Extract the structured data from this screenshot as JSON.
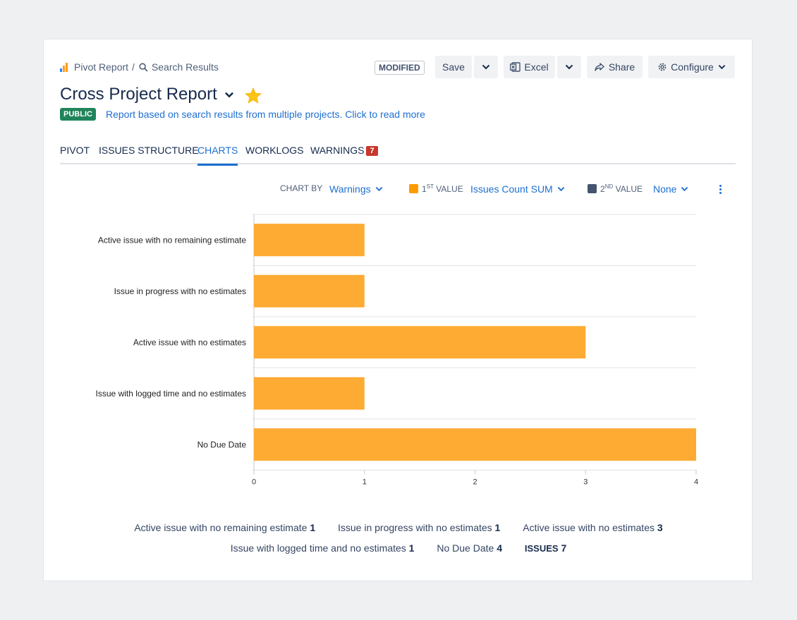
{
  "breadcrumb": {
    "parent": "Pivot Report",
    "separator": "/",
    "current": "Search Results"
  },
  "status_badge": "MODIFIED",
  "toolbar": {
    "save": "Save",
    "excel": "Excel",
    "share": "Share",
    "configure": "Configure"
  },
  "report": {
    "title": "Cross Project Report",
    "visibility": "PUBLIC",
    "description": "Report based on search results from multiple projects. Click to read more"
  },
  "tabs": [
    {
      "label": "PIVOT"
    },
    {
      "label": "ISSUES STRUCTURE"
    },
    {
      "label": "CHARTS"
    },
    {
      "label": "WORKLOGS"
    },
    {
      "label": "WARNINGS",
      "count": "7"
    }
  ],
  "chart_options": {
    "chart_by_label": "CHART BY",
    "chart_by_value": "Warnings",
    "first_value_prefix": "1",
    "first_value_sup": "ST",
    "first_value_label": "VALUE",
    "first_value_value": "Issues Count SUM",
    "second_value_prefix": "2",
    "second_value_sup": "ND",
    "second_value_label": "VALUE",
    "second_value_value": "None"
  },
  "colors": {
    "accent": "#1d6fd1",
    "bar": "#fdab33",
    "second_value": "#44546f",
    "public_badge": "#1f845a",
    "warning_badge": "#c9372c"
  },
  "chart_data": {
    "type": "bar",
    "orientation": "horizontal",
    "categories": [
      "Active issue with no remaining estimate",
      "Issue in progress with no estimates",
      "Active issue with no estimates",
      "Issue with logged time and no estimates",
      "No Due Date"
    ],
    "values": [
      1,
      1,
      3,
      1,
      4
    ],
    "xlim": [
      0,
      4
    ],
    "xticks": [
      "0",
      "1",
      "2",
      "3",
      "4"
    ],
    "grid": true
  },
  "legend": {
    "items": [
      {
        "label": "Active issue with no remaining estimate",
        "value": "1"
      },
      {
        "label": "Issue in progress with no estimates",
        "value": "1"
      },
      {
        "label": "Active issue with no estimates",
        "value": "3"
      },
      {
        "label": "Issue with logged time and no estimates",
        "value": "1"
      },
      {
        "label": "No Due Date",
        "value": "4"
      }
    ],
    "total_label": "ISSUES",
    "total_value": "7"
  }
}
